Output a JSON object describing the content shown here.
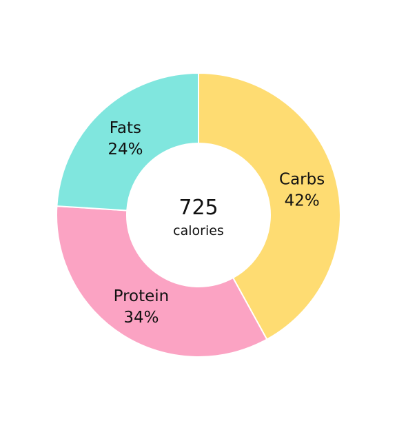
{
  "chart_data": {
    "type": "pie",
    "variant": "donut",
    "title": "",
    "center": {
      "value": "725",
      "unit": "calories"
    },
    "slices": [
      {
        "label": "Carbs",
        "value": 42,
        "value_label": "42%",
        "color": "#FEDC72"
      },
      {
        "label": "Protein",
        "value": 34,
        "value_label": "34%",
        "color": "#FBA3C3"
      },
      {
        "label": "Fats",
        "value": 24,
        "value_label": "24%",
        "color": "#80E6DE"
      }
    ]
  }
}
